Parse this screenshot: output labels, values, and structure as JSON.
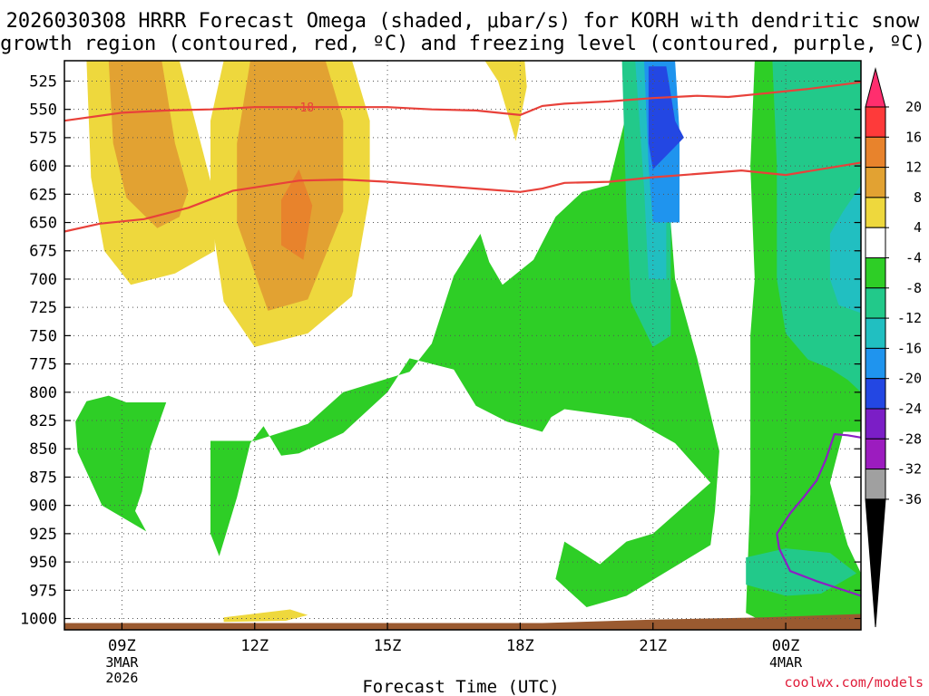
{
  "chart_data": {
    "type": "contour-cross-section",
    "title_lines": [
      "2026030308 HRRR Forecast Omega (shaded, μbar/s) for KORH with dendritic snow",
      "growth region (contoured, red, ºC) and freezing level (contoured, purple, ºC)"
    ],
    "xlabel": "Forecast Time (UTC)",
    "x_hour_range": [
      7.7,
      25.7
    ],
    "x_ticks": [
      {
        "hour": 9,
        "label": "09Z",
        "date": [
          "3MAR",
          "2026"
        ]
      },
      {
        "hour": 12,
        "label": "12Z",
        "date": []
      },
      {
        "hour": 15,
        "label": "15Z",
        "date": []
      },
      {
        "hour": 18,
        "label": "18Z",
        "date": []
      },
      {
        "hour": 21,
        "label": "21Z",
        "date": []
      },
      {
        "hour": 24,
        "label": "00Z",
        "date": [
          "4MAR"
        ]
      }
    ],
    "y_levels_mb": [
      525,
      550,
      575,
      600,
      625,
      650,
      675,
      700,
      725,
      750,
      775,
      800,
      825,
      850,
      875,
      900,
      925,
      950,
      975,
      1000
    ],
    "y_range_mb": [
      507,
      1010
    ],
    "colorbar": {
      "labels": [
        "20",
        "16",
        "12",
        "8",
        "4",
        "-4",
        "-8",
        "-12",
        "-16",
        "-20",
        "-24",
        "-28",
        "-32",
        "-36"
      ],
      "colors": [
        "#ff2e6e",
        "#fe3a3a",
        "#e8832c",
        "#e2a232",
        "#eed83d",
        "#ffffff",
        "#2ece26",
        "#22c98a",
        "#21bfc1",
        "#1f94ee",
        "#2347e3",
        "#7b1ec6",
        "#9c1cbf",
        "#a0a0a0",
        "#000000"
      ]
    },
    "omega_regions": [
      {
        "level": "4 to 8",
        "color": "#eed83d",
        "points": [
          [
            8.2,
            507
          ],
          [
            10.3,
            507
          ],
          [
            11.1,
            628
          ],
          [
            11.1,
            675
          ],
          [
            10.2,
            695
          ],
          [
            9.2,
            705
          ],
          [
            8.6,
            675
          ],
          [
            8.3,
            610
          ]
        ]
      },
      {
        "level": "8 to 12",
        "color": "#e2a232",
        "points": [
          [
            8.7,
            507
          ],
          [
            9.9,
            507
          ],
          [
            10.2,
            580
          ],
          [
            10.5,
            622
          ],
          [
            10.3,
            645
          ],
          [
            9.8,
            655
          ],
          [
            9.1,
            628
          ],
          [
            8.8,
            580
          ]
        ]
      },
      {
        "level": "4 to 8",
        "color": "#eed83d",
        "points": [
          [
            11.3,
            507
          ],
          [
            14.2,
            507
          ],
          [
            14.6,
            560
          ],
          [
            14.6,
            625
          ],
          [
            14.2,
            715
          ],
          [
            13.2,
            748
          ],
          [
            12.0,
            760
          ],
          [
            11.3,
            720
          ],
          [
            11.0,
            640
          ],
          [
            11.0,
            560
          ]
        ]
      },
      {
        "level": "8 to 12",
        "color": "#e2a232",
        "points": [
          [
            11.9,
            507
          ],
          [
            13.6,
            507
          ],
          [
            14.0,
            560
          ],
          [
            14.0,
            640
          ],
          [
            13.2,
            718
          ],
          [
            12.3,
            728
          ],
          [
            11.6,
            650
          ],
          [
            11.6,
            580
          ]
        ]
      },
      {
        "level": "12 to 16",
        "color": "#e8832c",
        "points": [
          [
            13.0,
            603
          ],
          [
            13.3,
            635
          ],
          [
            13.1,
            683
          ],
          [
            12.6,
            670
          ],
          [
            12.6,
            630
          ]
        ]
      },
      {
        "level": "4 to 8",
        "color": "#eed83d",
        "points": [
          [
            17.2,
            507
          ],
          [
            18.1,
            507
          ],
          [
            18.15,
            530
          ],
          [
            17.9,
            578
          ],
          [
            17.5,
            525
          ]
        ]
      },
      {
        "level": "4 to 8",
        "color": "#eed83d",
        "points": [
          [
            11.3,
            999
          ],
          [
            12.8,
            992
          ],
          [
            13.2,
            997
          ],
          [
            12.7,
            1002
          ],
          [
            11.3,
            1003
          ]
        ]
      },
      {
        "level": "-4 to -8",
        "color": "#2ece26",
        "points": [
          [
            8.7,
            803
          ],
          [
            9.1,
            809
          ],
          [
            10.0,
            809
          ],
          [
            9.65,
            848
          ],
          [
            9.45,
            888
          ],
          [
            9.3,
            905
          ],
          [
            9.55,
            923
          ],
          [
            8.55,
            900
          ],
          [
            8.0,
            853
          ],
          [
            7.95,
            826
          ],
          [
            8.2,
            808
          ]
        ]
      },
      {
        "level": "-4 to -8",
        "color": "#2ece26",
        "points": [
          [
            11.0,
            843
          ],
          [
            12.0,
            843
          ],
          [
            13.2,
            828
          ],
          [
            14.0,
            800
          ],
          [
            15.5,
            782
          ],
          [
            16.0,
            757
          ],
          [
            16.5,
            697
          ],
          [
            17.1,
            660
          ],
          [
            17.3,
            685
          ],
          [
            17.6,
            705
          ],
          [
            18.3,
            683
          ],
          [
            18.8,
            645
          ],
          [
            19.4,
            623
          ],
          [
            20.0,
            617
          ],
          [
            20.7,
            507
          ],
          [
            21.4,
            507
          ],
          [
            21.3,
            600
          ],
          [
            21.5,
            700
          ],
          [
            22.0,
            770
          ],
          [
            22.5,
            852
          ],
          [
            22.4,
            905
          ],
          [
            22.3,
            935
          ],
          [
            20.4,
            980
          ],
          [
            19.5,
            990
          ],
          [
            18.8,
            965
          ],
          [
            19.0,
            932
          ],
          [
            19.8,
            952
          ],
          [
            20.4,
            932
          ],
          [
            21.0,
            925
          ],
          [
            22.3,
            880
          ],
          [
            21.5,
            845
          ],
          [
            20.5,
            823
          ],
          [
            19.0,
            815
          ],
          [
            18.7,
            822
          ],
          [
            18.5,
            835
          ],
          [
            17.7,
            826
          ],
          [
            17.0,
            812
          ],
          [
            16.5,
            780
          ],
          [
            15.5,
            770
          ],
          [
            15.0,
            800
          ],
          [
            14.0,
            836
          ],
          [
            13.0,
            854
          ],
          [
            12.6,
            856
          ],
          [
            12.2,
            830
          ],
          [
            11.9,
            845
          ],
          [
            11.6,
            893
          ],
          [
            11.2,
            945
          ],
          [
            11.0,
            925
          ]
        ]
      },
      {
        "level": "-4 to -8",
        "color": "#2ece26",
        "points": [
          [
            23.3,
            507
          ],
          [
            25.7,
            507
          ],
          [
            25.7,
            835
          ],
          [
            25.3,
            835
          ],
          [
            25.0,
            880
          ],
          [
            25.4,
            935
          ],
          [
            25.7,
            960
          ],
          [
            25.7,
            997
          ],
          [
            24.5,
            998
          ],
          [
            23.5,
            1003
          ],
          [
            23.1,
            995
          ],
          [
            23.2,
            890
          ],
          [
            23.2,
            750
          ],
          [
            23.3,
            700
          ],
          [
            23.2,
            600
          ]
        ]
      },
      {
        "level": "-8 to -12",
        "color": "#22c98a",
        "points": [
          [
            20.3,
            507
          ],
          [
            21.4,
            507
          ],
          [
            21.4,
            750
          ],
          [
            21.0,
            760
          ],
          [
            20.5,
            720
          ],
          [
            20.4,
            640
          ]
        ]
      },
      {
        "level": "-8 to -12",
        "color": "#22c98a",
        "points": [
          [
            23.7,
            507
          ],
          [
            25.7,
            507
          ],
          [
            25.7,
            800
          ],
          [
            25.4,
            789
          ],
          [
            25.0,
            779
          ],
          [
            24.5,
            771
          ],
          [
            24.0,
            748
          ],
          [
            23.8,
            700
          ],
          [
            23.8,
            600
          ]
        ]
      },
      {
        "level": "-8 to -12",
        "color": "#22c98a",
        "points": [
          [
            23.1,
            946
          ],
          [
            24.0,
            938
          ],
          [
            25.0,
            942
          ],
          [
            25.6,
            960
          ],
          [
            24.8,
            978
          ],
          [
            24.0,
            980
          ],
          [
            23.1,
            970
          ]
        ]
      },
      {
        "level": "-12 to -16",
        "color": "#21bfc1",
        "points": [
          [
            20.6,
            507
          ],
          [
            21.4,
            507
          ],
          [
            21.3,
            600
          ],
          [
            21.3,
            700
          ],
          [
            20.9,
            700
          ],
          [
            20.8,
            620
          ]
        ]
      },
      {
        "level": "-12 to -16",
        "color": "#21bfc1",
        "points": [
          [
            25.7,
            617
          ],
          [
            25.7,
            730
          ],
          [
            25.2,
            723
          ],
          [
            25.0,
            700
          ],
          [
            25.0,
            660
          ],
          [
            25.3,
            640
          ]
        ]
      },
      {
        "level": "-16 to -20",
        "color": "#1f94ee",
        "points": [
          [
            20.8,
            507
          ],
          [
            21.5,
            507
          ],
          [
            21.6,
            570
          ],
          [
            21.6,
            650
          ],
          [
            21.0,
            650
          ],
          [
            20.9,
            600
          ]
        ]
      },
      {
        "level": "-20 to -24",
        "color": "#2347e3",
        "points": [
          [
            20.9,
            512
          ],
          [
            21.3,
            512
          ],
          [
            21.5,
            560
          ],
          [
            21.7,
            575
          ],
          [
            21.0,
            603
          ],
          [
            20.9,
            580
          ]
        ]
      }
    ],
    "dsg_isotherms": [
      {
        "temp_c": -18,
        "label": "-18",
        "label_hour": 13.1,
        "points": [
          [
            7.7,
            560
          ],
          [
            9.0,
            553
          ],
          [
            10.0,
            551
          ],
          [
            11.0,
            550
          ],
          [
            12.0,
            548
          ],
          [
            13.0,
            548
          ],
          [
            14.0,
            548
          ],
          [
            15.0,
            548
          ],
          [
            16.0,
            550
          ],
          [
            17.0,
            551
          ],
          [
            18.0,
            555
          ],
          [
            18.5,
            547
          ],
          [
            19.0,
            545
          ],
          [
            20.0,
            543
          ],
          [
            21.0,
            540
          ],
          [
            22.0,
            538
          ],
          [
            22.7,
            539
          ],
          [
            23.5,
            536
          ],
          [
            24.5,
            532
          ],
          [
            25.7,
            526
          ]
        ]
      },
      {
        "temp_c": -12,
        "points": [
          [
            7.7,
            658
          ],
          [
            8.5,
            651
          ],
          [
            9.5,
            647
          ],
          [
            10.5,
            637
          ],
          [
            11.5,
            622
          ],
          [
            12.5,
            616
          ],
          [
            13.0,
            613
          ],
          [
            14.0,
            612
          ],
          [
            15.0,
            614
          ],
          [
            16.0,
            617
          ],
          [
            17.0,
            620
          ],
          [
            18.0,
            623
          ],
          [
            18.5,
            620
          ],
          [
            19.0,
            615
          ],
          [
            20.0,
            614
          ],
          [
            21.0,
            610
          ],
          [
            22.0,
            607
          ],
          [
            23.0,
            604
          ],
          [
            24.0,
            608
          ],
          [
            25.7,
            597
          ]
        ]
      }
    ],
    "freezing_level": {
      "temp_c": 0,
      "points": [
        [
          25.7,
          840
        ],
        [
          25.4,
          838
        ],
        [
          25.1,
          837
        ],
        [
          24.9,
          860
        ],
        [
          24.7,
          878
        ],
        [
          24.4,
          893
        ],
        [
          24.1,
          907
        ],
        [
          23.8,
          925
        ],
        [
          23.85,
          938
        ],
        [
          24.1,
          958
        ],
        [
          24.7,
          967
        ],
        [
          25.7,
          980
        ]
      ]
    },
    "terrain_color": "#9a5a30",
    "terrain_points": [
      [
        7.7,
        1004
      ],
      [
        12.0,
        1004
      ],
      [
        18.5,
        1004
      ],
      [
        21.0,
        1001
      ],
      [
        23.5,
        999
      ],
      [
        25.7,
        996
      ],
      [
        25.7,
        1010
      ],
      [
        7.7,
        1010
      ]
    ],
    "credit": "coolwx.com/models"
  }
}
